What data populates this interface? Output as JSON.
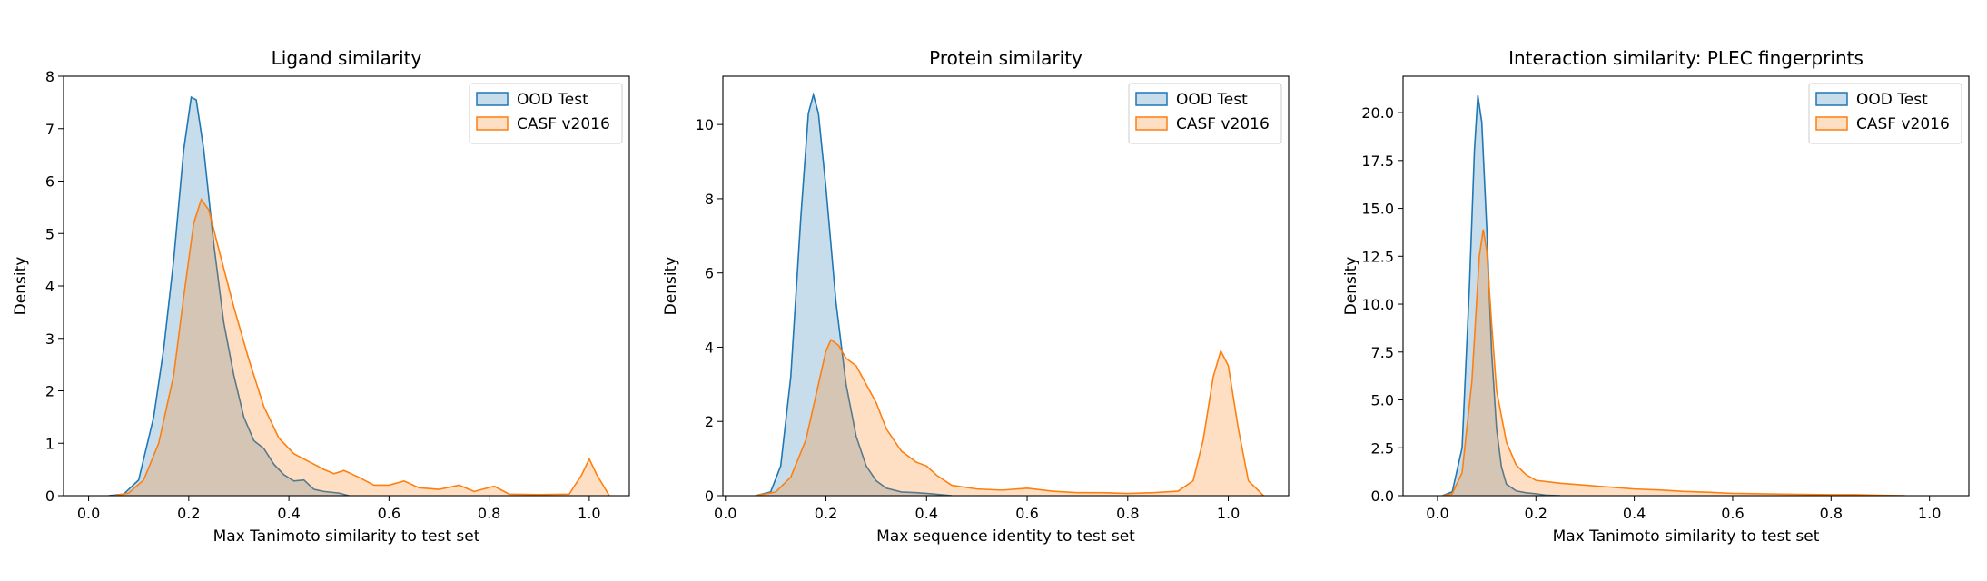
{
  "colors": {
    "ood_fill": "#1f77b4",
    "ood_line": "#1f77b4",
    "casf_fill": "#ff7f0e",
    "casf_line": "#ff7f0e"
  },
  "chart_data": [
    {
      "type": "area",
      "title": "Ligand similarity",
      "xlabel": "Max Tanimoto similarity to test set",
      "ylabel": "Density",
      "xlim": [
        -0.05,
        1.08
      ],
      "ylim": [
        0,
        8
      ],
      "xticks": [
        0.0,
        0.2,
        0.4,
        0.6,
        0.8,
        1.0
      ],
      "xtick_labels": [
        "0.0",
        "0.2",
        "0.4",
        "0.6",
        "0.8",
        "1.0"
      ],
      "yticks": [
        0,
        1,
        2,
        3,
        4,
        5,
        6,
        7,
        8
      ],
      "ytick_labels": [
        "0",
        "1",
        "2",
        "3",
        "4",
        "5",
        "6",
        "7",
        "8"
      ],
      "legend": "top-right",
      "series": [
        {
          "name": "OOD Test",
          "points": [
            [
              0.04,
              0
            ],
            [
              0.07,
              0.03
            ],
            [
              0.1,
              0.3
            ],
            [
              0.13,
              1.5
            ],
            [
              0.15,
              2.8
            ],
            [
              0.17,
              4.5
            ],
            [
              0.19,
              6.6
            ],
            [
              0.205,
              7.6
            ],
            [
              0.215,
              7.55
            ],
            [
              0.23,
              6.6
            ],
            [
              0.25,
              4.8
            ],
            [
              0.27,
              3.3
            ],
            [
              0.29,
              2.3
            ],
            [
              0.31,
              1.5
            ],
            [
              0.33,
              1.05
            ],
            [
              0.35,
              0.9
            ],
            [
              0.37,
              0.6
            ],
            [
              0.39,
              0.4
            ],
            [
              0.41,
              0.28
            ],
            [
              0.43,
              0.3
            ],
            [
              0.45,
              0.12
            ],
            [
              0.47,
              0.08
            ],
            [
              0.5,
              0.05
            ],
            [
              0.52,
              0
            ]
          ]
        },
        {
          "name": "CASF v2016",
          "points": [
            [
              0.05,
              0
            ],
            [
              0.08,
              0.05
            ],
            [
              0.11,
              0.3
            ],
            [
              0.14,
              1.0
            ],
            [
              0.17,
              2.3
            ],
            [
              0.19,
              3.8
            ],
            [
              0.21,
              5.2
            ],
            [
              0.225,
              5.65
            ],
            [
              0.24,
              5.45
            ],
            [
              0.26,
              4.7
            ],
            [
              0.29,
              3.6
            ],
            [
              0.32,
              2.6
            ],
            [
              0.35,
              1.7
            ],
            [
              0.38,
              1.1
            ],
            [
              0.41,
              0.8
            ],
            [
              0.44,
              0.65
            ],
            [
              0.47,
              0.5
            ],
            [
              0.49,
              0.42
            ],
            [
              0.51,
              0.48
            ],
            [
              0.54,
              0.35
            ],
            [
              0.57,
              0.2
            ],
            [
              0.6,
              0.2
            ],
            [
              0.63,
              0.28
            ],
            [
              0.66,
              0.15
            ],
            [
              0.7,
              0.12
            ],
            [
              0.74,
              0.2
            ],
            [
              0.77,
              0.08
            ],
            [
              0.81,
              0.18
            ],
            [
              0.84,
              0.03
            ],
            [
              0.9,
              0.02
            ],
            [
              0.96,
              0.03
            ],
            [
              0.985,
              0.4
            ],
            [
              1.0,
              0.7
            ],
            [
              1.015,
              0.4
            ],
            [
              1.04,
              0
            ]
          ]
        }
      ]
    },
    {
      "type": "area",
      "title": "Protein similarity",
      "xlabel": "Max sequence identity to test set",
      "ylabel": "Density",
      "xlim": [
        -0.005,
        1.12
      ],
      "ylim": [
        0,
        11.3
      ],
      "xticks": [
        0.0,
        0.2,
        0.4,
        0.6,
        0.8,
        1.0
      ],
      "xtick_labels": [
        "0.0",
        "0.2",
        "0.4",
        "0.6",
        "0.8",
        "1.0"
      ],
      "yticks": [
        0,
        2,
        4,
        6,
        8,
        10
      ],
      "ytick_labels": [
        "0",
        "2",
        "4",
        "6",
        "8",
        "10"
      ],
      "legend": "top-right",
      "series": [
        {
          "name": "OOD Test",
          "points": [
            [
              0.06,
              0
            ],
            [
              0.09,
              0.1
            ],
            [
              0.11,
              0.8
            ],
            [
              0.13,
              3.2
            ],
            [
              0.15,
              7.5
            ],
            [
              0.165,
              10.3
            ],
            [
              0.175,
              10.8
            ],
            [
              0.185,
              10.3
            ],
            [
              0.2,
              8.3
            ],
            [
              0.22,
              5.2
            ],
            [
              0.24,
              3.0
            ],
            [
              0.26,
              1.6
            ],
            [
              0.28,
              0.8
            ],
            [
              0.3,
              0.4
            ],
            [
              0.32,
              0.2
            ],
            [
              0.35,
              0.1
            ],
            [
              0.38,
              0.08
            ],
            [
              0.41,
              0.05
            ],
            [
              0.45,
              0
            ]
          ]
        },
        {
          "name": "CASF v2016",
          "points": [
            [
              0.06,
              0
            ],
            [
              0.1,
              0.1
            ],
            [
              0.13,
              0.5
            ],
            [
              0.16,
              1.5
            ],
            [
              0.18,
              2.7
            ],
            [
              0.2,
              3.9
            ],
            [
              0.21,
              4.2
            ],
            [
              0.225,
              4.05
            ],
            [
              0.24,
              3.7
            ],
            [
              0.26,
              3.5
            ],
            [
              0.28,
              3.0
            ],
            [
              0.3,
              2.5
            ],
            [
              0.32,
              1.8
            ],
            [
              0.35,
              1.2
            ],
            [
              0.38,
              0.9
            ],
            [
              0.4,
              0.8
            ],
            [
              0.42,
              0.55
            ],
            [
              0.45,
              0.28
            ],
            [
              0.5,
              0.18
            ],
            [
              0.55,
              0.15
            ],
            [
              0.6,
              0.2
            ],
            [
              0.65,
              0.12
            ],
            [
              0.7,
              0.08
            ],
            [
              0.75,
              0.08
            ],
            [
              0.8,
              0.06
            ],
            [
              0.85,
              0.08
            ],
            [
              0.9,
              0.12
            ],
            [
              0.93,
              0.4
            ],
            [
              0.95,
              1.5
            ],
            [
              0.97,
              3.2
            ],
            [
              0.985,
              3.9
            ],
            [
              1.0,
              3.5
            ],
            [
              1.02,
              1.8
            ],
            [
              1.04,
              0.4
            ],
            [
              1.07,
              0
            ]
          ]
        }
      ]
    },
    {
      "type": "area",
      "title": "Interaction similarity: PLEC fingerprints",
      "xlabel": "Max Tanimoto similarity to test set",
      "ylabel": "Density",
      "xlim": [
        -0.07,
        1.08
      ],
      "ylim": [
        0,
        21.9
      ],
      "xticks": [
        0.0,
        0.2,
        0.4,
        0.6,
        0.8,
        1.0
      ],
      "xtick_labels": [
        "0.0",
        "0.2",
        "0.4",
        "0.6",
        "0.8",
        "1.0"
      ],
      "yticks": [
        0,
        2.5,
        5,
        7.5,
        10,
        12.5,
        15,
        17.5,
        20
      ],
      "ytick_labels": [
        "0.0",
        "2.5",
        "5.0",
        "7.5",
        "10.0",
        "12.5",
        "15.0",
        "17.5",
        "20.0"
      ],
      "legend": "top-right",
      "series": [
        {
          "name": "OOD Test",
          "points": [
            [
              0.01,
              0
            ],
            [
              0.03,
              0.2
            ],
            [
              0.05,
              2.5
            ],
            [
              0.065,
              11.0
            ],
            [
              0.075,
              18.0
            ],
            [
              0.082,
              20.9
            ],
            [
              0.09,
              19.5
            ],
            [
              0.1,
              14.0
            ],
            [
              0.11,
              7.5
            ],
            [
              0.12,
              3.5
            ],
            [
              0.13,
              1.5
            ],
            [
              0.14,
              0.6
            ],
            [
              0.16,
              0.25
            ],
            [
              0.18,
              0.15
            ],
            [
              0.2,
              0.1
            ],
            [
              0.22,
              0.03
            ],
            [
              0.25,
              0
            ]
          ]
        },
        {
          "name": "CASF v2016",
          "points": [
            [
              0.01,
              0
            ],
            [
              0.03,
              0.1
            ],
            [
              0.05,
              1.2
            ],
            [
              0.07,
              6.0
            ],
            [
              0.085,
              12.5
            ],
            [
              0.093,
              13.9
            ],
            [
              0.1,
              12.8
            ],
            [
              0.11,
              9.0
            ],
            [
              0.12,
              5.5
            ],
            [
              0.14,
              2.8
            ],
            [
              0.16,
              1.6
            ],
            [
              0.18,
              1.1
            ],
            [
              0.2,
              0.8
            ],
            [
              0.25,
              0.65
            ],
            [
              0.3,
              0.55
            ],
            [
              0.35,
              0.45
            ],
            [
              0.4,
              0.35
            ],
            [
              0.45,
              0.3
            ],
            [
              0.5,
              0.22
            ],
            [
              0.55,
              0.18
            ],
            [
              0.6,
              0.12
            ],
            [
              0.7,
              0.08
            ],
            [
              0.8,
              0.05
            ],
            [
              0.85,
              0.05
            ],
            [
              0.9,
              0.02
            ],
            [
              0.95,
              0
            ]
          ]
        }
      ]
    }
  ]
}
